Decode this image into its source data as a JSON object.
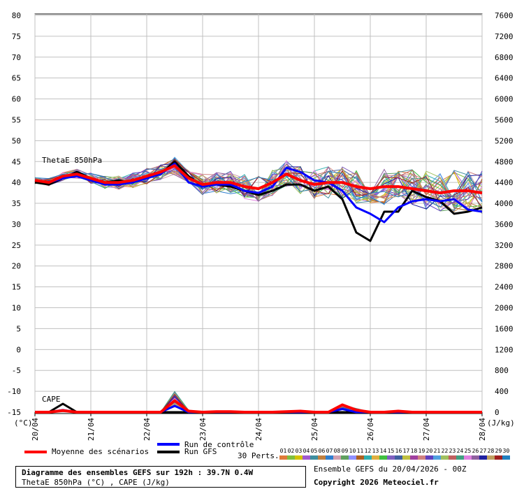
{
  "chart_data": {
    "type": "line",
    "title": "Diagramme des ensembles GEFS sur 192h : 39.7N 0.4W",
    "subtitle": "ThetaE 850hPa (°C) , CAPE (J/kg)",
    "left_axis": {
      "unit_label": "(°C)",
      "ylim": [
        -15,
        80
      ],
      "ticks": [
        80,
        75,
        70,
        65,
        60,
        55,
        50,
        45,
        40,
        35,
        30,
        25,
        20,
        15,
        10,
        5,
        0,
        -5,
        -10,
        -15
      ]
    },
    "right_axis": {
      "unit_label": "(J/kg)",
      "ylim": [
        0,
        7600
      ],
      "ticks": [
        7600,
        7200,
        6800,
        6400,
        6000,
        5600,
        5200,
        4800,
        4400,
        4000,
        3600,
        3200,
        2800,
        2400,
        2000,
        1600,
        1200,
        800,
        400,
        0
      ]
    },
    "x_axis": {
      "ticks": [
        "20/04",
        "21/04",
        "22/04",
        "23/04",
        "24/04",
        "25/04",
        "26/04",
        "27/04",
        "28/04"
      ],
      "hours_per_tick": 24,
      "total_hours": 192
    },
    "grid": true,
    "panel_labels": {
      "thetae": "ThetaE 850hPa",
      "cape": "CAPE"
    },
    "x_hours": [
      0,
      6,
      12,
      18,
      24,
      30,
      36,
      42,
      48,
      54,
      60,
      66,
      72,
      78,
      84,
      90,
      96,
      102,
      108,
      114,
      120,
      126,
      132,
      138,
      144,
      150,
      156,
      162,
      168,
      174,
      180,
      186,
      192
    ],
    "thetae_series": [
      {
        "name": "Moyenne des scénarios",
        "color": "#ff0000",
        "values": [
          40.5,
          40.0,
          41.5,
          42.0,
          41.0,
          40.0,
          40.0,
          40.5,
          41.5,
          42.5,
          44.0,
          41.0,
          39.5,
          40.0,
          40.0,
          39.0,
          38.5,
          40.0,
          42.0,
          40.5,
          39.5,
          40.0,
          40.0,
          39.0,
          38.5,
          39.0,
          39.0,
          38.5,
          38.0,
          37.5,
          38.0,
          38.0,
          37.5
        ]
      },
      {
        "name": "Run de contrôle",
        "color": "#0000ff",
        "values": [
          40.5,
          40.0,
          41.0,
          41.5,
          40.5,
          39.5,
          39.5,
          40.0,
          41.0,
          42.0,
          44.5,
          40.0,
          39.0,
          39.5,
          39.5,
          38.0,
          37.5,
          39.0,
          43.5,
          42.5,
          40.5,
          40.0,
          38.0,
          34.0,
          32.5,
          30.5,
          34.0,
          35.5,
          36.0,
          35.5,
          36.0,
          33.5,
          33.0
        ]
      },
      {
        "name": "Run GFS",
        "color": "#000000",
        "values": [
          40.0,
          39.5,
          41.0,
          42.5,
          41.0,
          40.0,
          40.5,
          40.0,
          41.5,
          42.0,
          45.0,
          41.5,
          39.0,
          39.5,
          39.0,
          38.0,
          37.0,
          38.0,
          39.5,
          39.5,
          38.0,
          39.0,
          36.0,
          28.0,
          26.0,
          33.0,
          33.0,
          38.0,
          36.5,
          35.5,
          32.5,
          33.0,
          34.0
        ]
      }
    ],
    "cape_series": [
      {
        "name": "Moyenne des scénarios",
        "color": "#ff0000",
        "values": [
          0,
          0,
          30,
          0,
          0,
          0,
          0,
          0,
          0,
          0,
          220,
          20,
          0,
          10,
          10,
          0,
          0,
          0,
          10,
          20,
          0,
          0,
          140,
          40,
          0,
          0,
          20,
          0,
          0,
          0,
          0,
          0,
          0
        ]
      },
      {
        "name": "Run de contrôle",
        "color": "#0000ff",
        "values": [
          0,
          0,
          40,
          0,
          0,
          0,
          0,
          0,
          0,
          0,
          120,
          0,
          0,
          0,
          0,
          0,
          0,
          0,
          0,
          0,
          0,
          0,
          60,
          0,
          0,
          0,
          0,
          0,
          0,
          0,
          0,
          0,
          0
        ]
      },
      {
        "name": "Run GFS",
        "color": "#000000",
        "values": [
          0,
          0,
          160,
          0,
          0,
          0,
          0,
          0,
          0,
          0,
          0,
          0,
          0,
          0,
          0,
          0,
          0,
          0,
          0,
          0,
          0,
          0,
          0,
          0,
          0,
          0,
          0,
          0,
          0,
          0,
          0,
          0,
          0
        ]
      }
    ]
  },
  "legend": {
    "mean_label": "Moyenne des scénarios",
    "control_label": "Run de contrôle",
    "gfs_label": "Run GFS",
    "perts_label": "30 Perts.",
    "pert_numbers": [
      "01",
      "02",
      "03",
      "04",
      "05",
      "06",
      "07",
      "08",
      "09",
      "10",
      "11",
      "12",
      "13",
      "14",
      "15",
      "16",
      "17",
      "18",
      "19",
      "20",
      "21",
      "22",
      "23",
      "24",
      "25",
      "26",
      "27",
      "28",
      "29",
      "30"
    ],
    "pert_colors": [
      "#e07b39",
      "#7fbf3f",
      "#d4c300",
      "#a05ad0",
      "#3f8f9f",
      "#c08040",
      "#2f7fd0",
      "#d0a0b0",
      "#60a060",
      "#9090ff",
      "#b06020",
      "#30b0b0",
      "#e0b040",
      "#40c040",
      "#8060c0",
      "#4060a0",
      "#c0c040",
      "#a040a0",
      "#d08080",
      "#6040c0",
      "#50a0e0",
      "#a0c060",
      "#c06060",
      "#40a080",
      "#e080e0",
      "#9060a0",
      "#2020a0",
      "#c0a060",
      "#a02020",
      "#2080c0"
    ],
    "caption_title": "Diagramme des ensembles GEFS sur 192h : 39.7N 0.4W",
    "caption_sub": "ThetaE 850hPa (°C) , CAPE (J/kg)",
    "ensemble_info": "Ensemble GEFS du 20/04/2026 - 00Z",
    "copyright": "Copyright 2026 Meteociel.fr"
  }
}
